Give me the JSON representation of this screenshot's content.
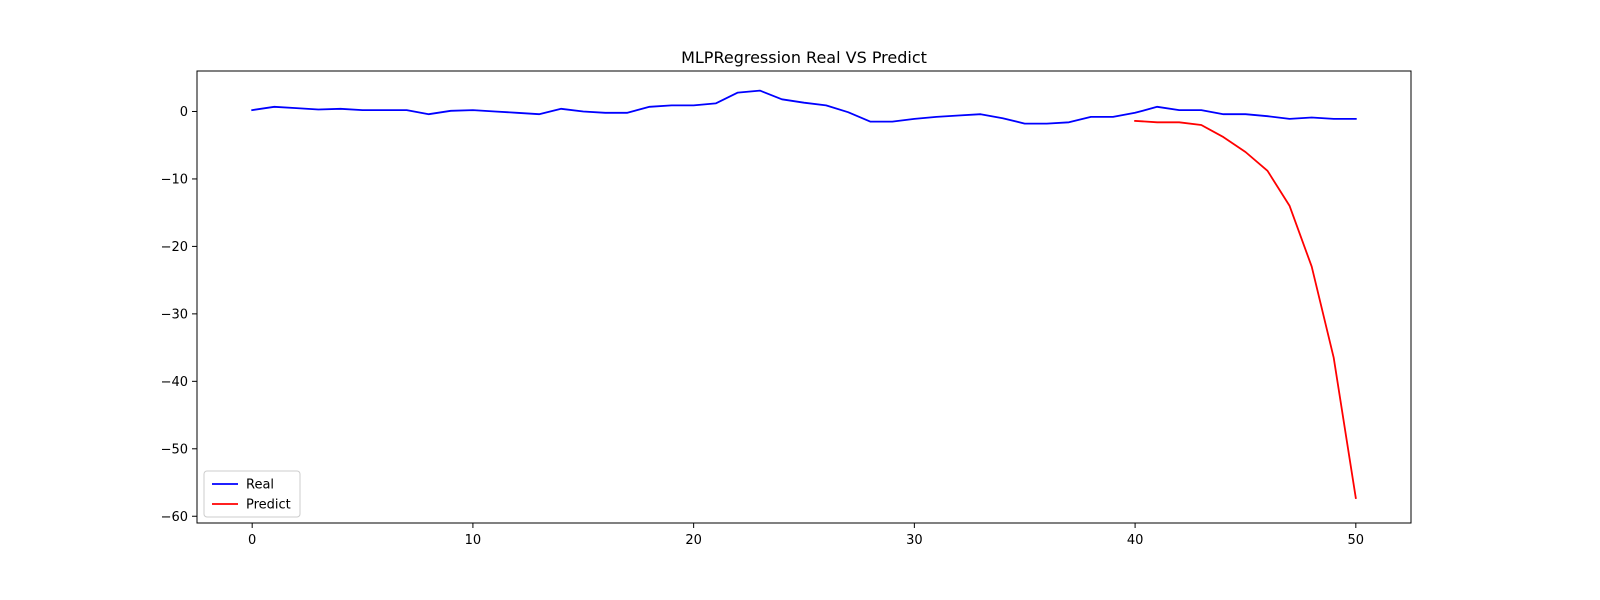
{
  "chart_data": {
    "type": "line",
    "title": "MLPRegression Real VS Predict",
    "xlabel": "",
    "ylabel": "",
    "xlim": [
      -2.5,
      52.5
    ],
    "ylim": [
      -61,
      6
    ],
    "xticks": [
      0,
      10,
      20,
      30,
      40,
      50
    ],
    "yticks": [
      0,
      -10,
      -20,
      -30,
      -40,
      -50,
      -60
    ],
    "xtick_labels": [
      "0",
      "10",
      "20",
      "30",
      "40",
      "50"
    ],
    "ytick_labels": [
      "0",
      "−10",
      "−20",
      "−30",
      "−40",
      "−50",
      "−60"
    ],
    "grid": false,
    "legend_position": "lower-left",
    "series": [
      {
        "name": "Real",
        "color": "#0000ff",
        "x": [
          0,
          1,
          2,
          3,
          4,
          5,
          6,
          7,
          8,
          9,
          10,
          11,
          12,
          13,
          14,
          15,
          16,
          17,
          18,
          19,
          20,
          21,
          22,
          23,
          24,
          25,
          26,
          27,
          28,
          29,
          30,
          31,
          32,
          33,
          34,
          35,
          36,
          37,
          38,
          39,
          40,
          41,
          42,
          43,
          44,
          45,
          46,
          47,
          48,
          49,
          50
        ],
        "values": [
          0.2,
          0.7,
          0.5,
          0.3,
          0.4,
          0.2,
          0.2,
          0.2,
          -0.4,
          0.1,
          0.2,
          0.0,
          -0.2,
          -0.4,
          0.4,
          0.0,
          -0.2,
          -0.2,
          0.7,
          0.9,
          0.9,
          1.2,
          2.8,
          3.1,
          1.8,
          1.3,
          0.9,
          -0.1,
          -1.5,
          -1.5,
          -1.1,
          -0.8,
          -0.6,
          -0.4,
          -1.0,
          -1.8,
          -1.8,
          -1.6,
          -0.8,
          -0.8,
          -0.2,
          0.7,
          0.2,
          0.2,
          -0.4,
          -0.4,
          -0.7,
          -1.1,
          -0.9,
          -1.1,
          -1.1
        ]
      },
      {
        "name": "Predict",
        "color": "#ff0000",
        "x": [
          40,
          41,
          42,
          43,
          44,
          45,
          46,
          47,
          48,
          49,
          50
        ],
        "values": [
          -1.4,
          -1.6,
          -1.6,
          -2.0,
          -3.8,
          -6.0,
          -8.8,
          -14.0,
          -23.0,
          -36.5,
          -57.3
        ]
      }
    ]
  }
}
